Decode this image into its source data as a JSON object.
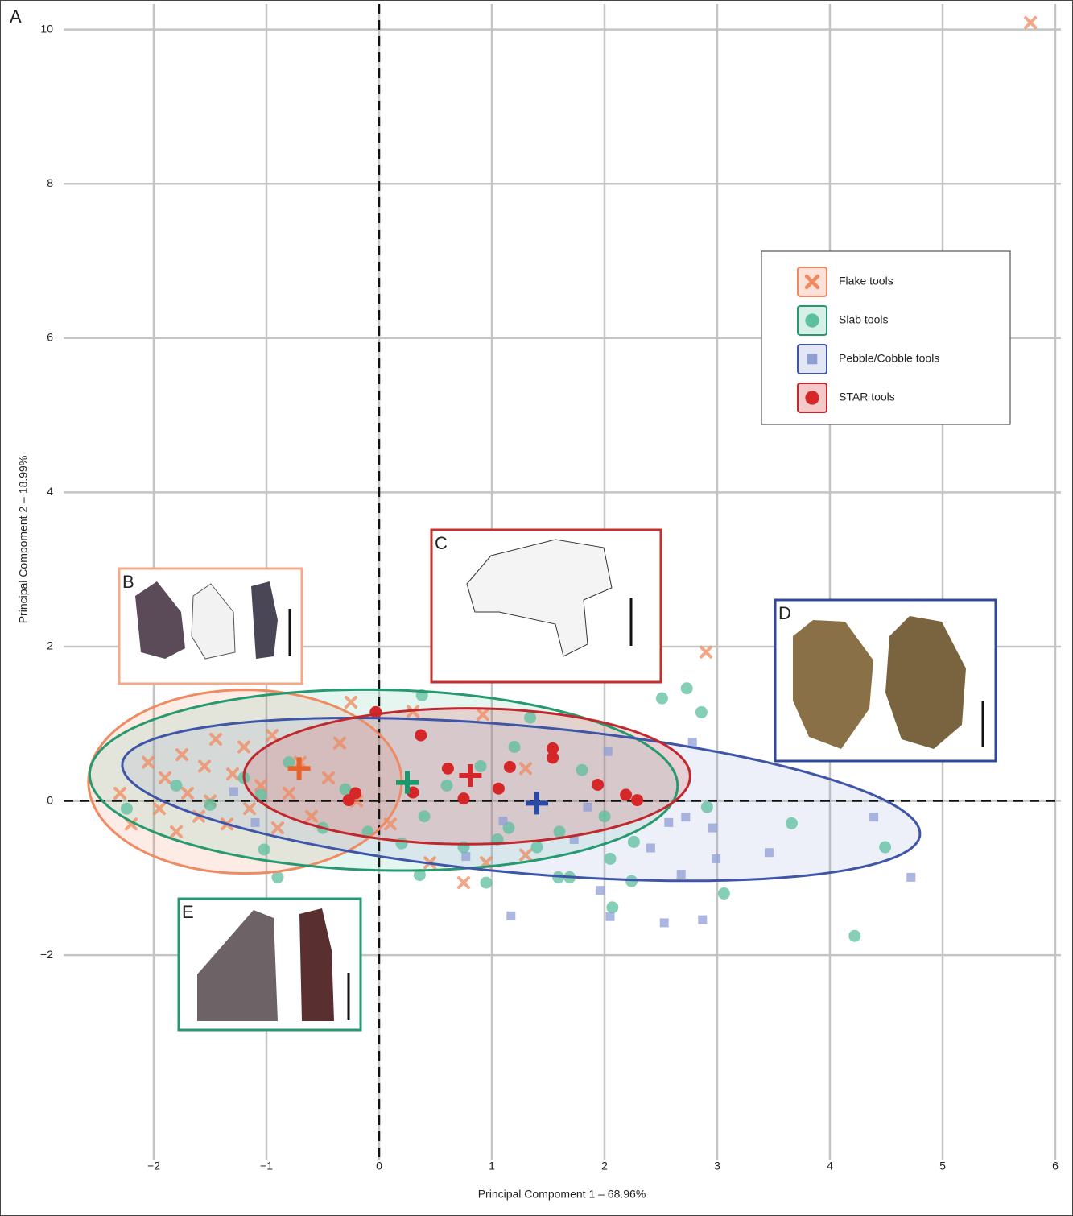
{
  "chart_data": {
    "type": "scatter",
    "panel_labels": [
      "A",
      "B",
      "C",
      "D",
      "E"
    ],
    "xlabel": "Principal Compoment 1 – 68.96%",
    "ylabel": "Principal Compoment 2 – 18.99%",
    "xlim": [
      -2.8,
      6.05
    ],
    "ylim": [
      -4.65,
      10.33
    ],
    "xticks": [
      {
        "value": -2,
        "label": "−2"
      },
      {
        "value": -1,
        "label": "−1"
      },
      0,
      1,
      2,
      3,
      4,
      5,
      6
    ],
    "yticks": [
      {
        "value": -2,
        "label": "−2"
      },
      0,
      2,
      4,
      6,
      8,
      10
    ],
    "grid": true,
    "zero_lines": true,
    "legend": "upper right",
    "series": [
      {
        "name": "Flake tools",
        "marker": "x",
        "color": "#f0895f",
        "edge_color": "#ef8a62",
        "x": [
          -2.3,
          -2.2,
          -2.05,
          -1.95,
          -1.9,
          -1.8,
          -1.75,
          -1.7,
          -1.6,
          -1.55,
          -1.5,
          -1.45,
          -1.35,
          -1.3,
          -1.2,
          -1.15,
          -1.05,
          -0.95,
          -0.9,
          -0.8,
          -0.7,
          -0.6,
          -0.45,
          -0.35,
          -0.2,
          0.1,
          0.45,
          0.95,
          1.3,
          1.3,
          -0.25,
          0.3,
          0.92,
          2.9,
          0.75,
          5.78
        ],
        "values": [
          0.1,
          -0.3,
          0.5,
          -0.1,
          0.3,
          -0.4,
          0.6,
          0.1,
          -0.2,
          0.45,
          0.0,
          0.8,
          -0.3,
          0.35,
          0.7,
          -0.1,
          0.2,
          0.85,
          -0.35,
          0.1,
          0.5,
          -0.2,
          0.3,
          0.75,
          0.0,
          -0.3,
          -0.8,
          -0.8,
          -0.7,
          0.42,
          1.28,
          1.16,
          1.12,
          1.93,
          -1.06,
          10.09
        ],
        "ellipse": {
          "cx": -1.19,
          "cy": 0.25,
          "rx": 1.39,
          "ry": 1.19,
          "angle": 0
        },
        "centroid": [
          -0.71,
          0.42
        ],
        "centroid_color": "#e8632a"
      },
      {
        "name": "Slab tools",
        "marker": "circle",
        "color": "#5cbf9f",
        "edge_color": "#27996f",
        "x": [
          2.51,
          2.73,
          2.86,
          0.38,
          1.34,
          2.91,
          3.66,
          3.06,
          4.49,
          4.22,
          2.07,
          2.24,
          2.05,
          2.26,
          1.69,
          1.59,
          0.95,
          0.36,
          -0.9,
          -1.02,
          -2.24,
          -1.8,
          -1.5,
          -1.2,
          -1.05,
          -0.8,
          -0.5,
          -0.3,
          -0.1,
          0.2,
          0.4,
          0.6,
          0.75,
          0.9,
          1.05,
          1.15,
          1.2,
          1.4,
          1.6,
          1.8,
          2.0
        ],
        "values": [
          1.33,
          1.46,
          1.15,
          1.37,
          1.08,
          -0.08,
          -0.29,
          -1.2,
          -0.6,
          -1.75,
          -1.38,
          -1.04,
          -0.75,
          -0.53,
          -0.99,
          -0.99,
          -1.06,
          -0.96,
          -0.99,
          -0.63,
          -0.1,
          0.2,
          -0.05,
          0.3,
          0.08,
          0.5,
          -0.35,
          0.15,
          -0.4,
          -0.55,
          -0.2,
          0.2,
          -0.6,
          0.45,
          -0.5,
          -0.35,
          0.7,
          -0.6,
          -0.4,
          0.4,
          -0.2
        ],
        "ellipse": {
          "cx": 0.04,
          "cy": 0.27,
          "rx": 2.61,
          "ry": 1.17,
          "angle": -2
        },
        "centroid": [
          0.25,
          0.24
        ],
        "centroid_color": "#179b6e"
      },
      {
        "name": "Pebble/Cobble tools",
        "marker": "square",
        "color": "#8f9fd6",
        "edge_color": "#3f55a8",
        "x": [
          2.78,
          2.72,
          2.57,
          2.96,
          2.99,
          2.41,
          2.68,
          3.46,
          4.39,
          4.72,
          1.96,
          1.17,
          2.05,
          2.53,
          2.87,
          0.77,
          1.73,
          2.03,
          1.85,
          -1.29,
          -1.1,
          1.1
        ],
        "values": [
          0.76,
          -0.21,
          -0.28,
          -0.35,
          -0.75,
          -0.61,
          -0.95,
          -0.67,
          -0.21,
          -0.99,
          -1.16,
          -1.49,
          -1.5,
          -1.58,
          -1.54,
          -0.72,
          -0.5,
          0.64,
          -0.08,
          0.12,
          -0.28,
          -0.26
        ],
        "ellipse": {
          "cx": 1.26,
          "cy": 0.02,
          "rx": 3.57,
          "ry": 0.95,
          "angle": -7.7
        },
        "centroid": [
          1.4,
          -0.03
        ],
        "centroid_color": "#2a4aa6"
      },
      {
        "name": "STAR tools",
        "marker": "dot",
        "color": "#d62728",
        "edge_color": "#c0282d",
        "x": [
          -0.03,
          0.37,
          1.54,
          1.54,
          0.61,
          1.16,
          1.94,
          2.19,
          2.29,
          1.06,
          0.75,
          -0.27,
          -0.21,
          0.3
        ],
        "values": [
          1.15,
          0.85,
          0.68,
          0.56,
          0.42,
          0.44,
          0.21,
          0.08,
          0.01,
          0.16,
          0.03,
          0.01,
          0.1,
          0.11
        ],
        "ellipse": {
          "cx": 0.78,
          "cy": 0.32,
          "rx": 1.98,
          "ry": 0.88,
          "angle": 0
        },
        "centroid": [
          0.81,
          0.33
        ],
        "centroid_color": "#d7262b"
      }
    ]
  }
}
